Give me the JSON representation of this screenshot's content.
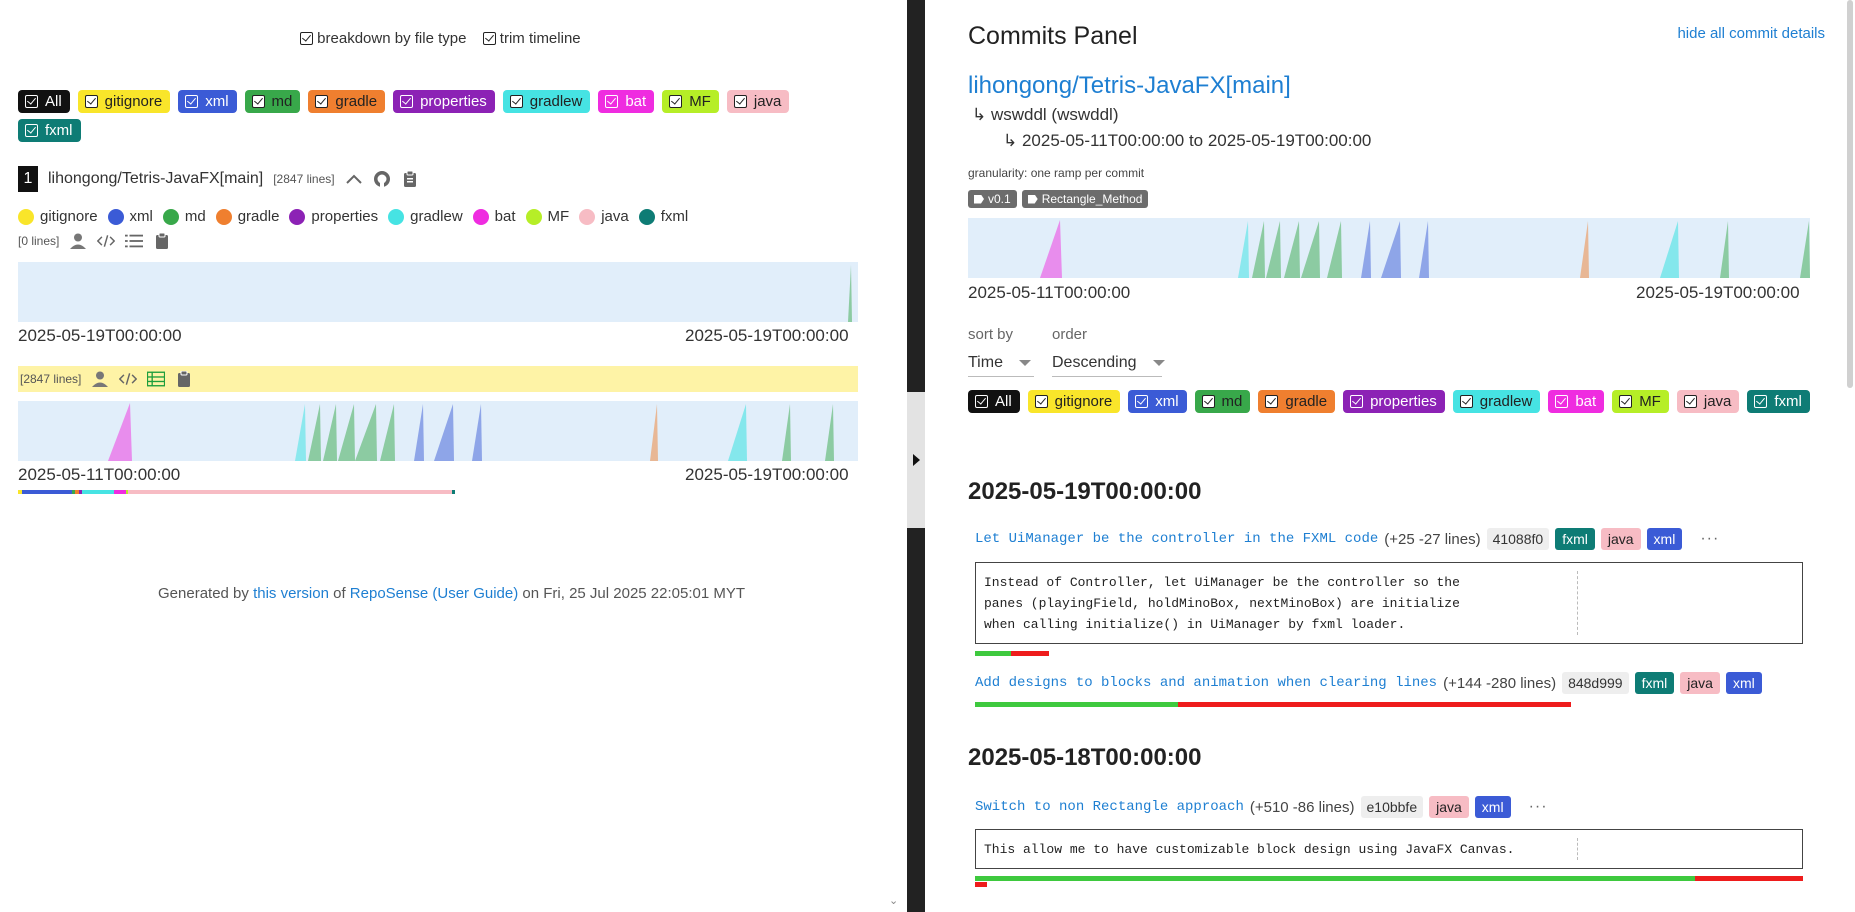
{
  "top_toggles": {
    "breakdown": "breakdown by file type",
    "trim": "trim timeline"
  },
  "file_types": [
    {
      "label": "All",
      "bg": "#111111",
      "fg": "#ffffff"
    },
    {
      "label": "gitignore",
      "bg": "#f9e52a",
      "fg": "#222222"
    },
    {
      "label": "xml",
      "bg": "#3b5bd6",
      "fg": "#ffffff"
    },
    {
      "label": "md",
      "bg": "#38a84a",
      "fg": "#222222"
    },
    {
      "label": "gradle",
      "bg": "#ef7f2f",
      "fg": "#222222"
    },
    {
      "label": "properties",
      "bg": "#8c22b5",
      "fg": "#ffffff"
    },
    {
      "label": "gradlew",
      "bg": "#46e3e3",
      "fg": "#222222"
    },
    {
      "label": "bat",
      "bg": "#ef2ce0",
      "fg": "#ffffff"
    },
    {
      "label": "MF",
      "bg": "#b6ee27",
      "fg": "#222222"
    },
    {
      "label": "java",
      "bg": "#f7bcc4",
      "fg": "#222222"
    },
    {
      "label": "fxml",
      "bg": "#0e7c75",
      "fg": "#ffffff"
    }
  ],
  "repo": {
    "rank": "1",
    "name": "lihongong/Tetris-JavaFX[main]",
    "lines": "[2847 lines]"
  },
  "legend": [
    {
      "label": "gitignore",
      "color": "#f9e52a"
    },
    {
      "label": "xml",
      "color": "#3b5bd6"
    },
    {
      "label": "md",
      "color": "#38a84a"
    },
    {
      "label": "gradle",
      "color": "#ef7f2f"
    },
    {
      "label": "properties",
      "color": "#8c22b5"
    },
    {
      "label": "gradlew",
      "color": "#46e3e3"
    },
    {
      "label": "bat",
      "color": "#ef2ce0"
    },
    {
      "label": "MF",
      "color": "#b6ee27"
    },
    {
      "label": "java",
      "color": "#f7bcc4"
    },
    {
      "label": "fxml",
      "color": "#0e7c75"
    }
  ],
  "author1": {
    "lines": "[0 lines]",
    "date_start": "2025-05-19T00:00:00",
    "date_end": "2025-05-19T00:00:00"
  },
  "author2": {
    "lines": "[2847 lines]",
    "date_start": "2025-05-11T00:00:00",
    "date_end": "2025-05-19T00:00:00"
  },
  "footer": {
    "prefix": "Generated by ",
    "version_link": "this version",
    "of": " of ",
    "reposense_link": "RepoSense",
    "guide_link": "(User Guide)",
    "suffix": " on Fri, 25 Jul 2025 22:05:01 MYT"
  },
  "panel": {
    "title": "Commits Panel",
    "hide_link": "hide all commit details",
    "repo": "lihongong/Tetris-JavaFX[main]",
    "author": "wswddl (wswddl)",
    "range": "2025-05-11T00:00:00 to 2025-05-19T00:00:00",
    "granularity": "granularity: one ramp per commit",
    "tags": [
      "v0.1",
      "Rectangle_Method"
    ],
    "ramp_start": "2025-05-11T00:00:00",
    "ramp_end": "2025-05-19T00:00:00",
    "sort_by_label": "sort by",
    "sort_by_value": "Time",
    "order_label": "order",
    "order_value": "Descending"
  },
  "days": [
    {
      "date": "2025-05-19T00:00:00",
      "commits": [
        {
          "message": "Let UiManager be the controller in the FXML code",
          "lines": "(+25 -27 lines)",
          "hash": "41088f0",
          "types": [
            "fxml",
            "java",
            "xml"
          ],
          "body": [
            "Instead of Controller, let UiManager be the controller so the",
            "panes (playingField, holdMinoBox, nextMinoBox) are initialize",
            "when calling initialize() in UiManager by fxml loader."
          ]
        },
        {
          "message": "Add designs to blocks and animation when clearing lines",
          "lines": "(+144 -280 lines)",
          "hash": "848d999",
          "types": [
            "fxml",
            "java",
            "xml"
          ],
          "body": []
        }
      ]
    },
    {
      "date": "2025-05-18T00:00:00",
      "commits": [
        {
          "message": "Switch to non Rectangle approach",
          "lines": "(+510 -86 lines)",
          "hash": "e10bbfe",
          "types": [
            "java",
            "xml"
          ],
          "body": [
            "This allow me to have customizable block design using JavaFX Canvas."
          ]
        }
      ]
    }
  ]
}
